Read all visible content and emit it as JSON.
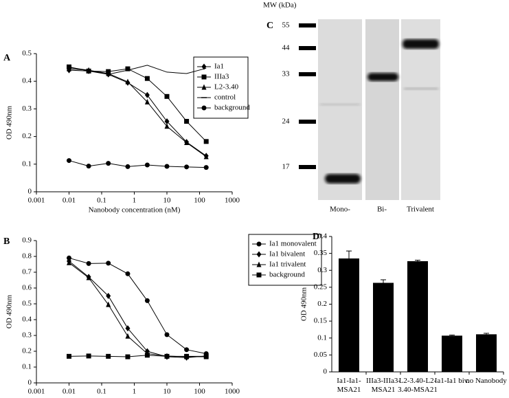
{
  "chart_data": [
    {
      "panel": "A",
      "type": "line",
      "xlabel": "Nanobody concentration (nM)",
      "ylabel": "OD 490nm",
      "log_x": true,
      "x": [
        0.01,
        0.04,
        0.16,
        0.63,
        2.5,
        10,
        40,
        160
      ],
      "xlim": [
        0.001,
        1000
      ],
      "xticks": [
        0.001,
        0.01,
        0.1,
        1,
        10,
        100,
        1000
      ],
      "ylim": [
        0,
        0.5
      ],
      "yticks": [
        0,
        0.1,
        0.2,
        0.3,
        0.4,
        0.5
      ],
      "legend": "top-right",
      "series": [
        {
          "name": "Ia1",
          "color": "#000000",
          "marker": "diamond",
          "values": [
            0.44,
            0.437,
            0.425,
            0.395,
            0.35,
            0.255,
            0.18,
            0.13
          ]
        },
        {
          "name": "IIIa3",
          "color": "#000000",
          "marker": "square",
          "values": [
            0.452,
            0.437,
            0.435,
            0.445,
            0.41,
            0.345,
            0.255,
            0.182
          ]
        },
        {
          "name": "L2-3.40",
          "color": "#000000",
          "marker": "triangle",
          "values": [
            0.445,
            0.44,
            0.428,
            0.398,
            0.325,
            0.237,
            0.178,
            0.127
          ]
        },
        {
          "name": "control",
          "color": "#000000",
          "marker": "dash",
          "values": [
            0.45,
            0.44,
            0.425,
            0.44,
            0.458,
            0.433,
            0.428,
            0.447
          ]
        },
        {
          "name": "background",
          "color": "#000000",
          "marker": "circle",
          "values": [
            0.113,
            0.093,
            0.103,
            0.091,
            0.097,
            0.092,
            0.09,
            0.088
          ]
        }
      ]
    },
    {
      "panel": "B",
      "type": "line",
      "xlabel": "Nanobody concentration (nM)",
      "ylabel": "OD 490nm",
      "log_x": true,
      "x": [
        0.01,
        0.04,
        0.16,
        0.63,
        2.5,
        10,
        40,
        160
      ],
      "xlim": [
        0.001,
        1000
      ],
      "xticks": [
        0.001,
        0.01,
        0.1,
        1,
        10,
        100,
        1000
      ],
      "ylim": [
        0,
        0.9
      ],
      "yticks": [
        0,
        0.1,
        0.2,
        0.3,
        0.4,
        0.5,
        0.6,
        0.7,
        0.8,
        0.9
      ],
      "legend": "top-right",
      "series": [
        {
          "name": "Ia1 monovalent",
          "color": "#000000",
          "marker": "circle",
          "values": [
            0.79,
            0.755,
            0.757,
            0.69,
            0.52,
            0.305,
            0.21,
            0.185
          ]
        },
        {
          "name": "Ia1 bivalent",
          "color": "#000000",
          "marker": "diamond",
          "values": [
            0.77,
            0.67,
            0.55,
            0.345,
            0.2,
            0.165,
            0.16,
            0.17
          ]
        },
        {
          "name": "Ia1 trivalent",
          "color": "#000000",
          "marker": "triangle",
          "values": [
            0.76,
            0.665,
            0.495,
            0.295,
            0.185,
            0.17,
            0.165,
            0.165
          ]
        },
        {
          "name": "background",
          "color": "#000000",
          "marker": "square",
          "values": [
            0.168,
            0.17,
            0.168,
            0.165,
            0.175,
            0.168,
            0.168,
            0.168
          ]
        }
      ]
    },
    {
      "panel": "D",
      "type": "bar",
      "ylabel": "OD 490nm",
      "color": "#000000",
      "categories": [
        "Ia1-Ia1-\nMSA21",
        "IIIa3-IIIa3-\nMSA21",
        "L2-3.40-L2-\n3.40-MSA21",
        "Ia1-Ia1 biv.",
        "no Nanobody"
      ],
      "values": [
        0.335,
        0.263,
        0.327,
        0.107,
        0.111
      ],
      "errors": [
        0.022,
        0.009,
        0.003,
        0.002,
        0.003
      ],
      "ylim": [
        0,
        0.4
      ],
      "yticks": [
        0,
        0.05,
        0.1,
        0.15,
        0.2,
        0.25,
        0.3,
        0.35,
        0.4
      ]
    }
  ],
  "gel": {
    "panel": "C",
    "mw_label": "MW (kDa)",
    "mw_markers": [
      55,
      44,
      33,
      24,
      17
    ],
    "lanes": [
      "Mono-",
      "Bi-",
      "Trivalent"
    ]
  }
}
